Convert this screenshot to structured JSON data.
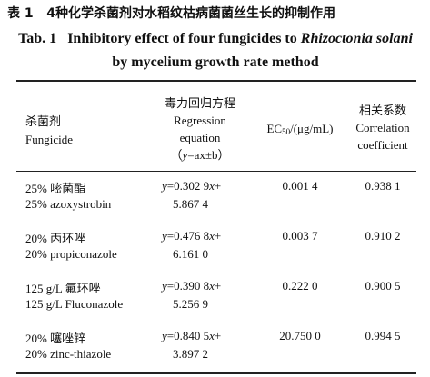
{
  "caption": {
    "cn_label": "表 1",
    "cn_title": "4种化学杀菌剂对水稻纹枯病菌菌丝生长的抑制作用",
    "en_label": "Tab. 1",
    "en_title_1": "Inhibitory effect of four fungicides to",
    "en_title_species": "Rhizoctonia solani",
    "en_title_2": "by mycelium growth rate method"
  },
  "table": {
    "header": {
      "fungicide_cn": "杀菌剂",
      "fungicide_en": "Fungicide",
      "regression_cn": "毒力回归方程",
      "regression_en": "Regression equation",
      "formula": [
        "（",
        "y",
        "=ax±b）"
      ],
      "ec50": [
        "EC",
        "50",
        "/(μg/mL)"
      ],
      "correlation_cn": "相关系数",
      "correlation_en": "Correlation coefficient"
    },
    "rows": [
      {
        "fungicide_cn": "25% 嘧菌酯",
        "fungicide_en": "25% azoxystrobin",
        "equation": [
          "y",
          "=0.302 9",
          "x",
          "+"
        ],
        "equation_cont": "5.867 4",
        "ec50": "0.001 4",
        "r": "0.938 1"
      },
      {
        "fungicide_cn": "20% 丙环唑",
        "fungicide_en": "20% propiconazole",
        "equation": [
          "y",
          "=0.476 8",
          "x",
          "+"
        ],
        "equation_cont": "6.161 0",
        "ec50": "0.003 7",
        "r": "0.910 2"
      },
      {
        "fungicide_cn": "125 g/L 氟环唑",
        "fungicide_en": "125 g/L Fluconazole",
        "equation": [
          "y",
          "=0.390 8",
          "x",
          "+"
        ],
        "equation_cont": "5.256 9",
        "ec50": "0.222 0",
        "r": "0.900 5"
      },
      {
        "fungicide_cn": "20% 噻唑锌",
        "fungicide_en": "20% zinc-thiazole",
        "equation": [
          "y",
          "=0.840 5",
          "x",
          "+"
        ],
        "equation_cont": "3.897 2",
        "ec50": "20.750 0",
        "r": "0.994 5"
      }
    ]
  }
}
